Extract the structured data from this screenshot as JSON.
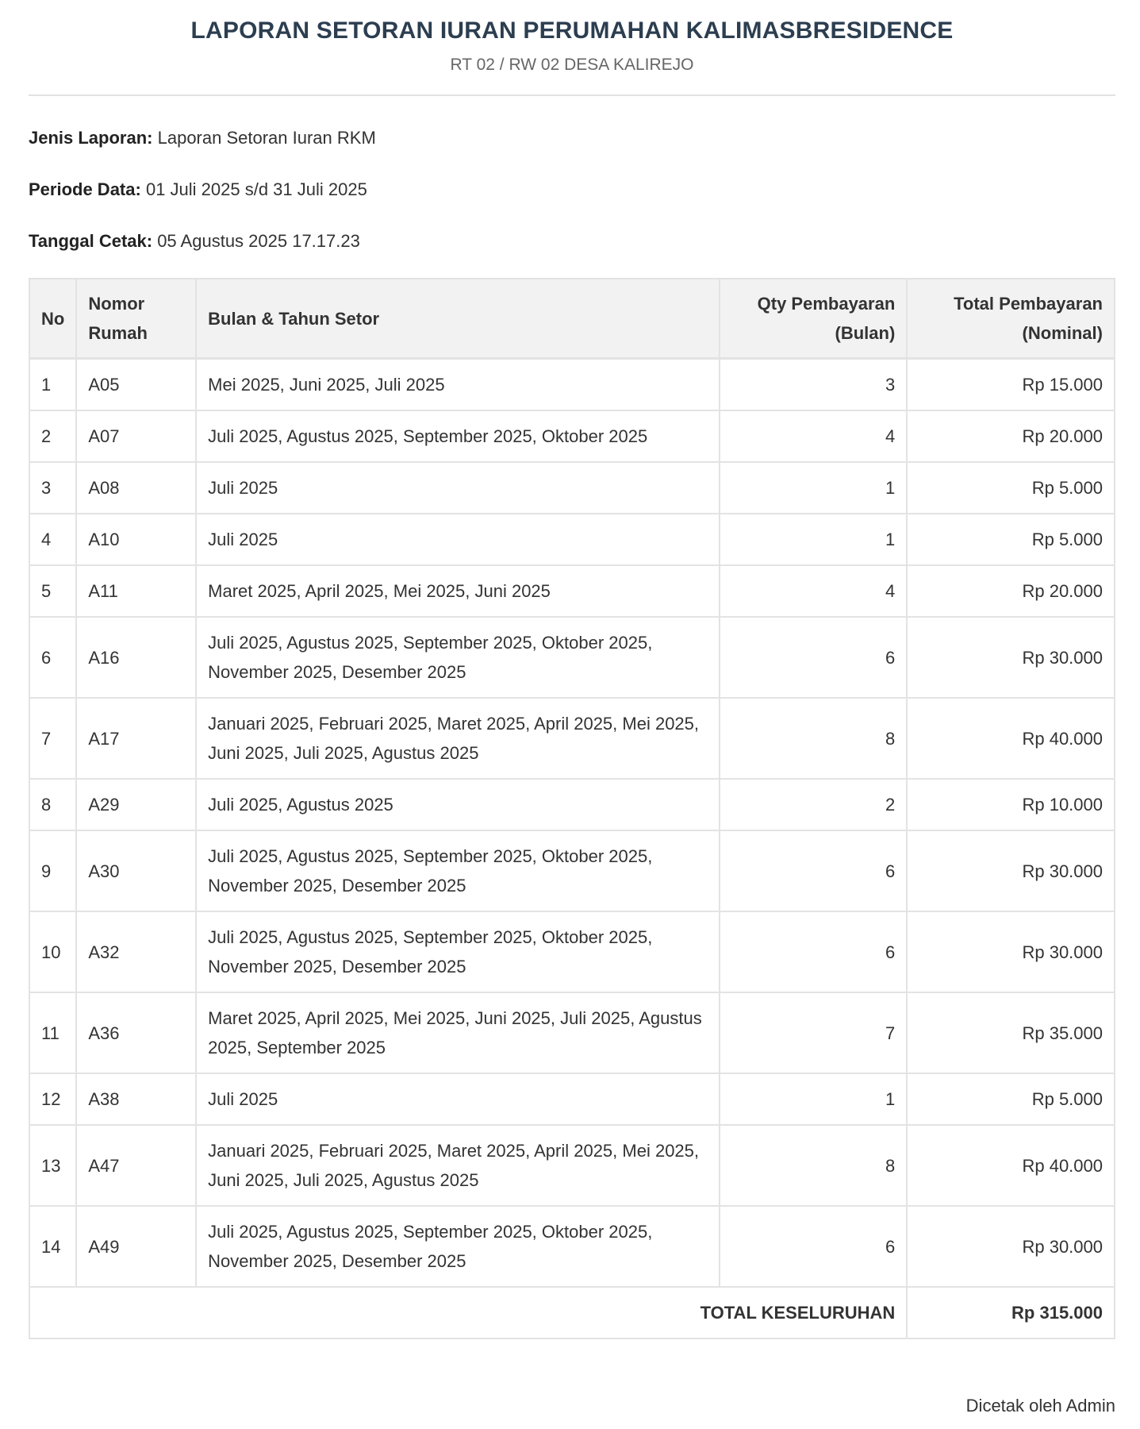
{
  "header": {
    "title": "LAPORAN SETORAN IURAN PERUMAHAN KALIMASBRESIDENCE",
    "subtitle": "RT 02 / RW 02 DESA KALIREJO"
  },
  "meta": [
    {
      "label": "Jenis Laporan:",
      "value": "Laporan Setoran Iuran RKM"
    },
    {
      "label": "Periode Data:",
      "value": "01 Juli 2025 s/d 31 Juli 2025"
    },
    {
      "label": "Tanggal Cetak:",
      "value": "05 Agustus 2025 17.17.23"
    }
  ],
  "table": {
    "headers": {
      "no": "No",
      "rumah": "Nomor Rumah",
      "bulan": "Bulan & Tahun Setor",
      "qty": "Qty Pembayaran (Bulan)",
      "total": "Total Pembayaran (Nominal)"
    },
    "rows": [
      {
        "no": "1",
        "rumah": "A05",
        "bulan": "Mei 2025, Juni 2025, Juli 2025",
        "qty": "3",
        "total": "Rp 15.000"
      },
      {
        "no": "2",
        "rumah": "A07",
        "bulan": "Juli 2025, Agustus 2025, September 2025, Oktober 2025",
        "qty": "4",
        "total": "Rp 20.000"
      },
      {
        "no": "3",
        "rumah": "A08",
        "bulan": "Juli 2025",
        "qty": "1",
        "total": "Rp 5.000"
      },
      {
        "no": "4",
        "rumah": "A10",
        "bulan": "Juli 2025",
        "qty": "1",
        "total": "Rp 5.000"
      },
      {
        "no": "5",
        "rumah": "A11",
        "bulan": "Maret 2025, April 2025, Mei 2025, Juni 2025",
        "qty": "4",
        "total": "Rp 20.000"
      },
      {
        "no": "6",
        "rumah": "A16",
        "bulan": "Juli 2025, Agustus 2025, September 2025, Oktober 2025, November 2025, Desember 2025",
        "qty": "6",
        "total": "Rp 30.000"
      },
      {
        "no": "7",
        "rumah": "A17",
        "bulan": "Januari 2025, Februari 2025, Maret 2025, April 2025, Mei 2025, Juni 2025, Juli 2025, Agustus 2025",
        "qty": "8",
        "total": "Rp 40.000"
      },
      {
        "no": "8",
        "rumah": "A29",
        "bulan": "Juli 2025, Agustus 2025",
        "qty": "2",
        "total": "Rp 10.000"
      },
      {
        "no": "9",
        "rumah": "A30",
        "bulan": "Juli 2025, Agustus 2025, September 2025, Oktober 2025, November 2025, Desember 2025",
        "qty": "6",
        "total": "Rp 30.000"
      },
      {
        "no": "10",
        "rumah": "A32",
        "bulan": "Juli 2025, Agustus 2025, September 2025, Oktober 2025, November 2025, Desember 2025",
        "qty": "6",
        "total": "Rp 30.000"
      },
      {
        "no": "11",
        "rumah": "A36",
        "bulan": "Maret 2025, April 2025, Mei 2025, Juni 2025, Juli 2025, Agustus 2025, September 2025",
        "qty": "7",
        "total": "Rp 35.000"
      },
      {
        "no": "12",
        "rumah": "A38",
        "bulan": "Juli 2025",
        "qty": "1",
        "total": "Rp 5.000"
      },
      {
        "no": "13",
        "rumah": "A47",
        "bulan": "Januari 2025, Februari 2025, Maret 2025, April 2025, Mei 2025, Juni 2025, Juli 2025, Agustus 2025",
        "qty": "8",
        "total": "Rp 40.000"
      },
      {
        "no": "14",
        "rumah": "A49",
        "bulan": "Juli 2025, Agustus 2025, September 2025, Oktober 2025, November 2025, Desember 2025",
        "qty": "6",
        "total": "Rp 30.000"
      }
    ],
    "total_label": "TOTAL KESELURUHAN",
    "total_value": "Rp 315.000"
  },
  "footer": {
    "printed_by": "Dicetak oleh Admin"
  }
}
